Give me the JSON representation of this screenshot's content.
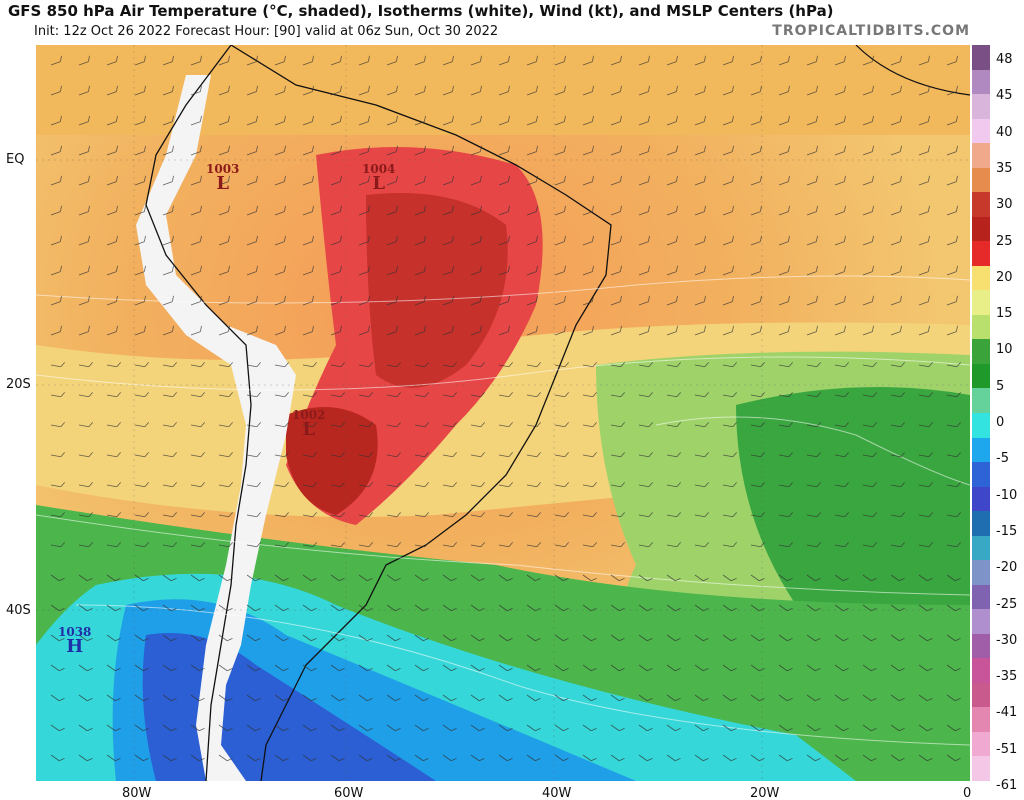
{
  "header": {
    "title": "GFS 850 hPa Air Temperature (°C, shaded), Isotherms (white), Wind (kt), and MSLP Centers (hPa)",
    "subtitle": "Init: 12z Oct 26 2022   Forecast Hour: [90]   valid at 06z Sun, Oct 30 2022",
    "brand": "TROPICALTIDBITS.COM"
  },
  "axes": {
    "lat_labels": [
      "EQ",
      "20S",
      "40S"
    ],
    "lon_labels": [
      "80W",
      "60W",
      "40W",
      "20W",
      "0"
    ]
  },
  "colorbar": {
    "labels": [
      "48",
      "45",
      "40",
      "35",
      "30",
      "25",
      "20",
      "15",
      "10",
      "5",
      "0",
      "-5",
      "-10",
      "-15",
      "-20",
      "-25",
      "-30",
      "-35",
      "-41",
      "-51",
      "-61"
    ],
    "colors": [
      "#7a4f86",
      "#b089c0",
      "#d9b5dc",
      "#f2c9ee",
      "#f0a98a",
      "#e78c4f",
      "#c73a2b",
      "#b8221c",
      "#e62a2a",
      "#f7e070",
      "#e8ef88",
      "#b9df6c",
      "#3aa33a",
      "#1f9a2a",
      "#64d29a",
      "#33e3e0",
      "#1fa7ee",
      "#2e63d8",
      "#3f46c9",
      "#1f6fb0",
      "#38a8c4",
      "#7e93c8",
      "#7f63b0",
      "#b08fcf",
      "#a05da8",
      "#c8549a",
      "#c95a8e",
      "#e386b0",
      "#f0aad2",
      "#f3c7e5"
    ]
  },
  "pressure_centers": [
    {
      "value": "1003",
      "symbol": "L",
      "color": "#8b1a1a"
    },
    {
      "value": "1004",
      "symbol": "L",
      "color": "#8b1a1a"
    },
    {
      "value": "1002",
      "symbol": "L",
      "color": "#8b1a1a"
    },
    {
      "value": "1038",
      "symbol": "H",
      "color": "#1f2fa8"
    }
  ]
}
